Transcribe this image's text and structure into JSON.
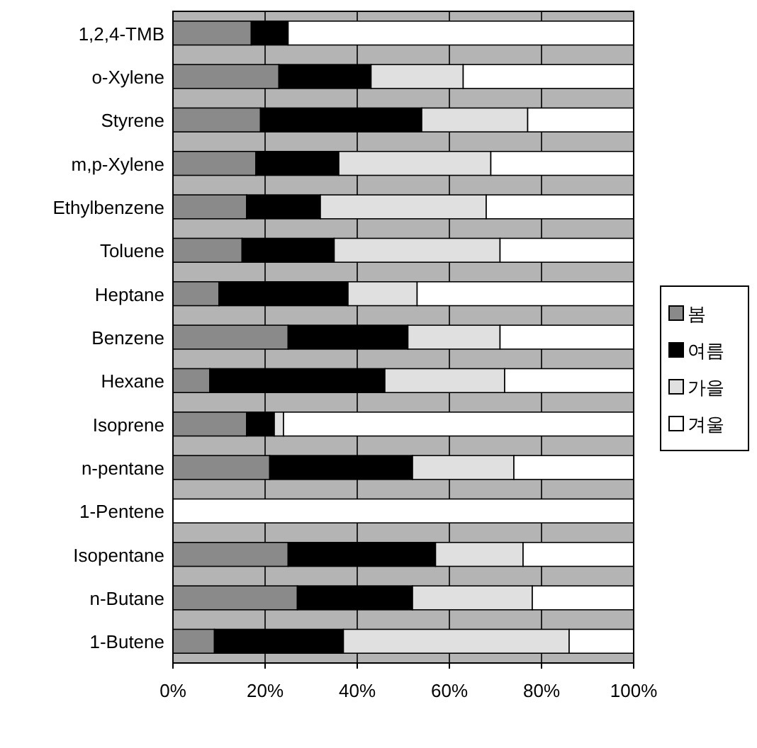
{
  "chart_data": {
    "type": "bar",
    "orientation": "horizontal",
    "stacked": true,
    "categories": [
      "1,2,4-TMB",
      "o-Xylene",
      "Styrene",
      "m,p-Xylene",
      "Ethylbenzene",
      "Toluene",
      "Heptane",
      "Benzene",
      "Hexane",
      "Isoprene",
      "n-pentane",
      "1-Pentene",
      "Isopentane",
      "n-Butane",
      "1-Butene"
    ],
    "series": [
      {
        "name": "봄",
        "color": "#8a8a8a",
        "values": [
          17,
          23,
          19,
          18,
          16,
          15,
          10,
          25,
          8,
          16,
          21,
          0,
          25,
          27,
          9
        ]
      },
      {
        "name": "여름",
        "color": "#000000",
        "values": [
          8,
          20,
          35,
          18,
          16,
          20,
          28,
          26,
          38,
          6,
          31,
          0,
          32,
          25,
          28
        ]
      },
      {
        "name": "가을",
        "color": "#e0e0e0",
        "values": [
          0,
          20,
          23,
          33,
          36,
          36,
          15,
          20,
          26,
          2,
          22,
          0,
          19,
          26,
          49
        ]
      },
      {
        "name": "겨울",
        "color": "#ffffff",
        "values": [
          75,
          37,
          23,
          31,
          32,
          29,
          47,
          29,
          28,
          76,
          26,
          100,
          24,
          22,
          14
        ]
      }
    ],
    "xlim": [
      0,
      100
    ],
    "xticks": [
      {
        "value": 0,
        "label": "0%"
      },
      {
        "value": 20,
        "label": "20%"
      },
      {
        "value": 40,
        "label": "40%"
      },
      {
        "value": 60,
        "label": "60%"
      },
      {
        "value": 80,
        "label": "80%"
      },
      {
        "value": 100,
        "label": "100%"
      }
    ],
    "grid": "x",
    "legend": "right"
  }
}
